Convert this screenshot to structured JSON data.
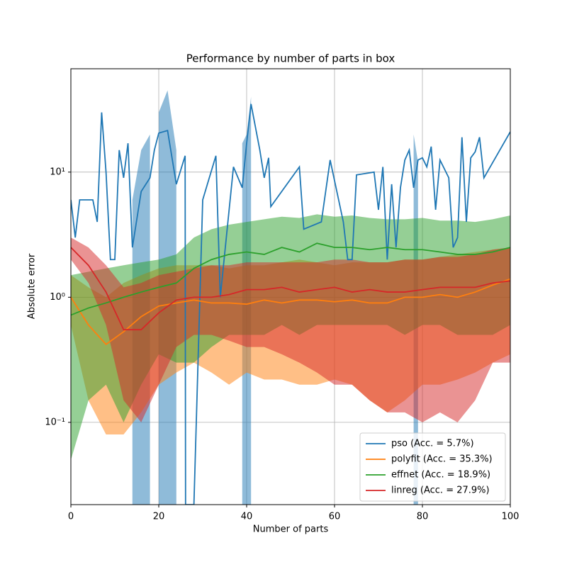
{
  "chart_data": {
    "type": "line",
    "title": "Performance by number of parts in box",
    "x_label": "Number of parts",
    "y_label": "Absolute error",
    "yscale": "log",
    "grid": true,
    "legend": "lower right",
    "band_alpha": 0.5,
    "xlim": [
      0,
      100
    ],
    "xticks": [
      0,
      20,
      40,
      60,
      80,
      100
    ],
    "ylim": [
      0.022,
      67
    ],
    "yticks": [
      {
        "value": 0.1,
        "label": "10⁻¹"
      },
      {
        "value": 1,
        "label": "10⁰"
      },
      {
        "value": 10,
        "label": "10¹"
      }
    ],
    "series": [
      {
        "name": "pso (Acc. = 5.7%)",
        "color": "#1f77b4",
        "x": [
          0,
          1,
          2,
          5,
          6,
          7,
          8,
          9,
          10,
          11,
          12,
          13,
          14,
          16,
          18,
          19,
          20,
          22,
          24,
          26,
          26.1,
          28,
          30,
          33,
          34,
          37,
          39,
          40,
          41,
          43,
          44,
          45,
          45.5,
          52,
          53,
          57,
          59,
          62,
          63,
          64,
          65,
          69,
          70,
          71,
          72,
          73,
          74,
          75,
          76,
          77,
          78,
          79,
          80,
          81,
          82,
          83,
          84,
          86,
          87,
          88,
          89,
          90,
          91,
          92,
          93,
          94,
          100
        ],
        "values": [
          6,
          3,
          6,
          6,
          4,
          30,
          10,
          2,
          2,
          15,
          9,
          17,
          2.5,
          7,
          9,
          15,
          20.5,
          21.5,
          8,
          13.5,
          0.022,
          0.022,
          6,
          13.5,
          1,
          11,
          7.5,
          17,
          35,
          15,
          9,
          13,
          5.3,
          11,
          3.5,
          4,
          12.5,
          4,
          2,
          2,
          9.5,
          10,
          5,
          11,
          2,
          8,
          2.5,
          7.5,
          12.5,
          15,
          7.5,
          12.5,
          13,
          11,
          16,
          5,
          12.5,
          9,
          2.5,
          3,
          19,
          4,
          13,
          14.5,
          19,
          9,
          21
        ],
        "lower": [
          null,
          null,
          null,
          null,
          null,
          null,
          null,
          null,
          null,
          null,
          null,
          null,
          0.022,
          0.022,
          0.022,
          null,
          0.022,
          0.022,
          0.022,
          null,
          null,
          null,
          null,
          null,
          null,
          null,
          0.022,
          0.022,
          0.022,
          null,
          null,
          null,
          null,
          null,
          null,
          null,
          null,
          null,
          null,
          null,
          null,
          null,
          null,
          null,
          null,
          null,
          null,
          null,
          null,
          null,
          0.022,
          0.022,
          null,
          null,
          null,
          null,
          null,
          null,
          null,
          null,
          null,
          null,
          null,
          null,
          null,
          null,
          null
        ],
        "upper": [
          null,
          null,
          null,
          null,
          null,
          null,
          null,
          null,
          null,
          null,
          null,
          null,
          6,
          15,
          20,
          null,
          30,
          45,
          15,
          null,
          null,
          null,
          null,
          null,
          null,
          null,
          17,
          20,
          40,
          null,
          null,
          null,
          null,
          null,
          null,
          null,
          null,
          null,
          null,
          null,
          null,
          null,
          null,
          null,
          null,
          null,
          null,
          null,
          null,
          null,
          20,
          12,
          null,
          null,
          null,
          null,
          null,
          null,
          null,
          null,
          null,
          null,
          null,
          null,
          null,
          null,
          null
        ]
      },
      {
        "name": "polyfit (Acc. = 35.3%)",
        "color": "#ff7f0e",
        "x": [
          0,
          4,
          8,
          12,
          16,
          20,
          24,
          28,
          32,
          36,
          40,
          44,
          48,
          52,
          56,
          60,
          64,
          68,
          72,
          76,
          80,
          84,
          88,
          92,
          96,
          100
        ],
        "values": [
          1.0,
          0.6,
          0.42,
          0.53,
          0.7,
          0.85,
          0.9,
          0.95,
          0.9,
          0.9,
          0.88,
          0.95,
          0.9,
          0.95,
          0.95,
          0.92,
          0.95,
          0.9,
          0.9,
          1.0,
          1.0,
          1.05,
          1.0,
          1.1,
          1.25,
          1.4
        ],
        "lower": [
          0.6,
          0.15,
          0.08,
          0.08,
          0.12,
          0.2,
          0.25,
          0.3,
          0.25,
          0.2,
          0.25,
          0.22,
          0.22,
          0.2,
          0.2,
          0.22,
          0.2,
          0.15,
          0.12,
          0.15,
          0.2,
          0.2,
          0.22,
          0.25,
          0.3,
          0.35
        ],
        "upper": [
          1.5,
          1.2,
          1.0,
          1.3,
          1.5,
          1.7,
          1.8,
          1.8,
          1.8,
          1.7,
          1.8,
          1.8,
          1.9,
          2.0,
          1.9,
          1.8,
          1.9,
          1.9,
          1.9,
          2.0,
          2.0,
          2.1,
          2.2,
          2.3,
          2.4,
          2.5
        ]
      },
      {
        "name": "effnet (Acc. = 18.9%)",
        "color": "#2ca02c",
        "x": [
          0,
          4,
          8,
          12,
          16,
          20,
          24,
          28,
          32,
          36,
          40,
          44,
          48,
          52,
          56,
          60,
          64,
          68,
          72,
          76,
          80,
          84,
          88,
          92,
          96,
          100
        ],
        "values": [
          0.72,
          0.82,
          0.9,
          1.0,
          1.1,
          1.2,
          1.3,
          1.7,
          2.0,
          2.2,
          2.3,
          2.2,
          2.5,
          2.3,
          2.7,
          2.5,
          2.5,
          2.4,
          2.5,
          2.4,
          2.4,
          2.3,
          2.2,
          2.2,
          2.3,
          2.5
        ],
        "lower": [
          0.05,
          0.15,
          0.2,
          0.1,
          0.2,
          0.35,
          0.3,
          0.3,
          0.4,
          0.5,
          0.5,
          0.5,
          0.6,
          0.5,
          0.6,
          0.6,
          0.6,
          0.6,
          0.6,
          0.5,
          0.6,
          0.6,
          0.5,
          0.5,
          0.5,
          0.6
        ],
        "upper": [
          1.5,
          1.6,
          1.7,
          1.8,
          1.9,
          2.0,
          2.2,
          3.0,
          3.5,
          3.8,
          4.0,
          4.2,
          4.4,
          4.3,
          4.6,
          4.4,
          4.5,
          4.3,
          4.2,
          4.2,
          4.3,
          4.1,
          4.1,
          4.0,
          4.2,
          4.5
        ]
      },
      {
        "name": "linreg (Acc. = 27.9%)",
        "color": "#d62728",
        "x": [
          0,
          4,
          8,
          12,
          16,
          20,
          24,
          28,
          32,
          36,
          40,
          44,
          48,
          52,
          56,
          60,
          64,
          68,
          72,
          76,
          80,
          84,
          88,
          92,
          96,
          100
        ],
        "values": [
          2.5,
          1.8,
          1.1,
          0.55,
          0.55,
          0.75,
          0.95,
          1.0,
          1.0,
          1.05,
          1.15,
          1.15,
          1.2,
          1.1,
          1.15,
          1.2,
          1.1,
          1.15,
          1.1,
          1.1,
          1.15,
          1.2,
          1.2,
          1.2,
          1.3,
          1.35
        ],
        "lower": [
          2.0,
          1.3,
          0.6,
          0.15,
          0.1,
          0.2,
          0.4,
          0.5,
          0.5,
          0.45,
          0.4,
          0.4,
          0.35,
          0.3,
          0.25,
          0.2,
          0.2,
          0.15,
          0.12,
          0.12,
          0.1,
          0.12,
          0.1,
          0.15,
          0.3,
          0.3
        ],
        "upper": [
          3.0,
          2.5,
          1.8,
          1.2,
          1.3,
          1.5,
          1.6,
          1.7,
          1.8,
          1.8,
          1.9,
          1.9,
          1.9,
          1.9,
          1.9,
          2.0,
          2.0,
          1.9,
          1.9,
          2.0,
          2.0,
          2.1,
          2.1,
          2.2,
          2.4,
          2.5
        ]
      }
    ]
  }
}
